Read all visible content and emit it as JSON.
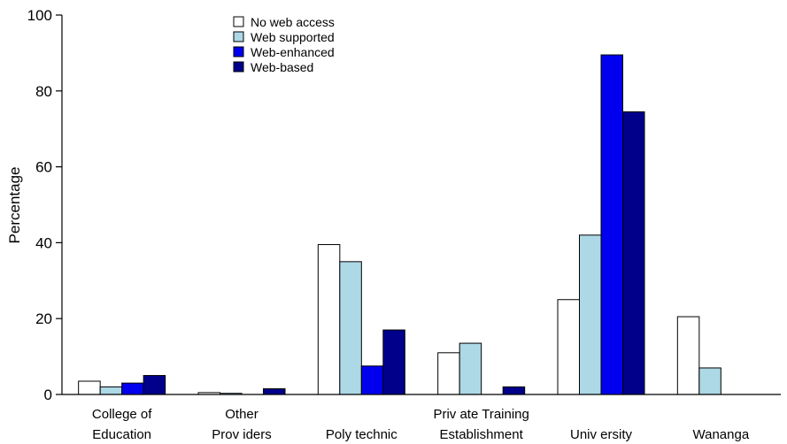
{
  "chart_data": {
    "type": "bar",
    "title": "",
    "xlabel": "",
    "ylabel": "Percentage",
    "ylim": [
      0,
      100
    ],
    "yticks": [
      0,
      20,
      40,
      60,
      80,
      100
    ],
    "grid": false,
    "legend_position": "top-center",
    "categories": [
      [
        "College of",
        "Education"
      ],
      [
        "Other",
        "Prov iders"
      ],
      [
        "Poly technic"
      ],
      [
        "Priv ate Training",
        "Establishment"
      ],
      [
        "Univ ersity"
      ],
      [
        "Wananga"
      ]
    ],
    "series": [
      {
        "name": "No web access",
        "color": "#ffffff",
        "values": [
          3.5,
          0.5,
          39.5,
          11,
          25,
          20.5
        ]
      },
      {
        "name": "Web supported",
        "color": "#add8e6",
        "values": [
          2,
          0.3,
          35,
          13.5,
          42,
          7
        ]
      },
      {
        "name": "Web-enhanced",
        "color": "#0000ee",
        "values": [
          3,
          0,
          7.5,
          0,
          89.5,
          0
        ]
      },
      {
        "name": "Web-based",
        "color": "#00008b",
        "values": [
          5,
          1.5,
          17,
          2,
          74.5,
          0
        ]
      }
    ]
  }
}
